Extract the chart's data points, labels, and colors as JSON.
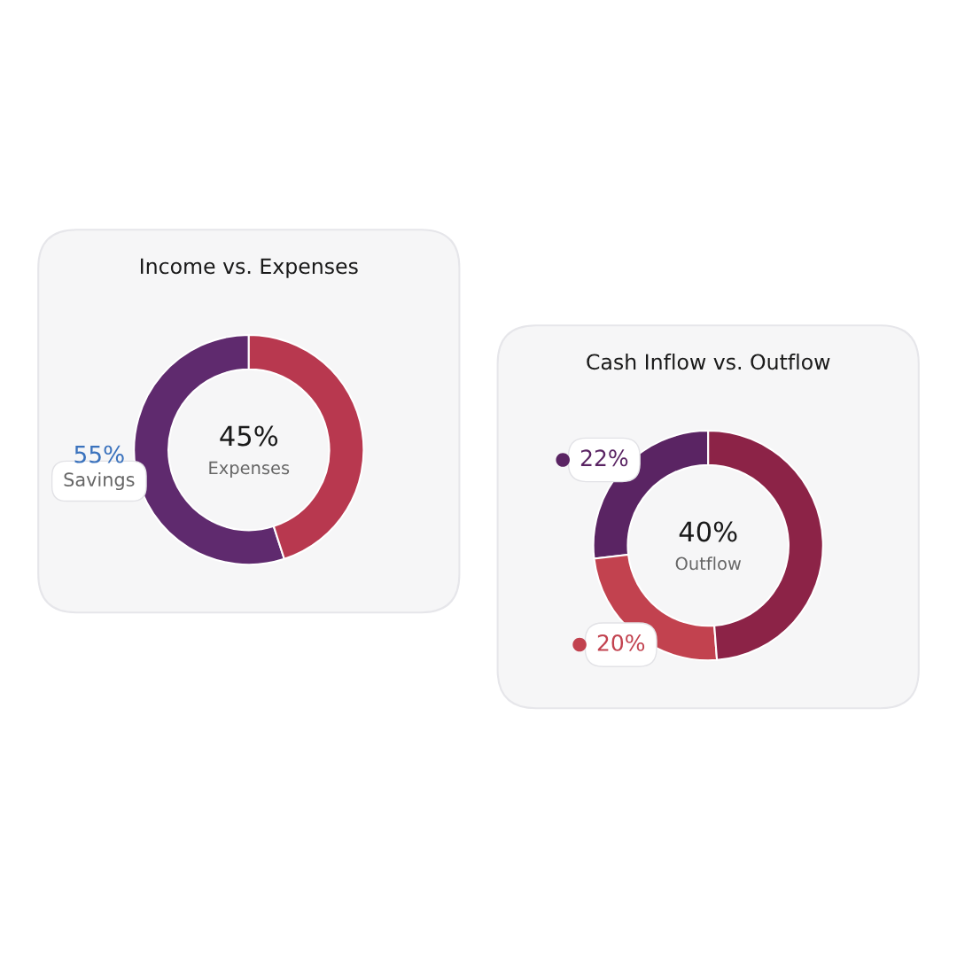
{
  "chart_data": [
    {
      "type": "donut",
      "title": "Income vs. Expenses",
      "categories": [
        "Savings",
        "Expenses"
      ],
      "values": [
        55,
        45
      ],
      "colors": [
        "#5f2a6e",
        "#b8384f"
      ],
      "value_labels": [
        "55%",
        "45%"
      ]
    },
    {
      "type": "donut",
      "title": "Cash Inflow vs. Outflow",
      "categories": [
        null,
        null,
        "Outflow"
      ],
      "values": [
        22,
        20,
        40
      ],
      "colors": [
        "#5a2463",
        "#c2424f",
        "#8c2347"
      ],
      "value_labels": [
        "22%",
        "20%",
        "40%"
      ]
    }
  ]
}
